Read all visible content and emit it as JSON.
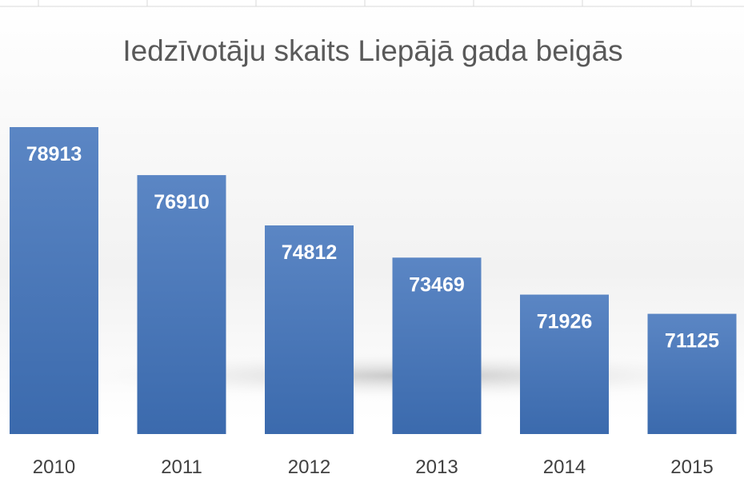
{
  "chart_data": {
    "type": "bar",
    "title": "Iedzīvotāju skaits Liepājā gada beigās",
    "categories": [
      "2010",
      "2011",
      "2012",
      "2013",
      "2014",
      "2015"
    ],
    "values": [
      78913,
      76910,
      74812,
      73469,
      71926,
      71125
    ],
    "data_labels": [
      "78913",
      "76910",
      "74812",
      "73469",
      "71926",
      "71125"
    ],
    "xlabel": "",
    "ylabel": "",
    "grid": false,
    "legend": "none",
    "colors": {
      "bar_top": "#5b86c4",
      "bar_bottom": "#3b6aad",
      "title": "#595959",
      "axis_text": "#404040",
      "label": "#ffffff"
    }
  }
}
